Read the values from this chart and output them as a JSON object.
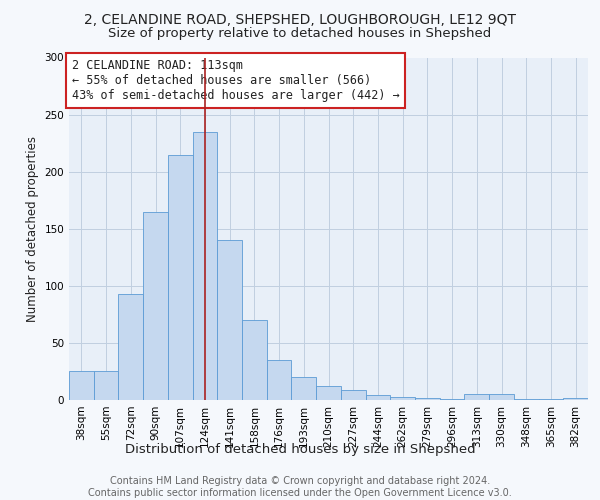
{
  "title_line1": "2, CELANDINE ROAD, SHEPSHED, LOUGHBOROUGH, LE12 9QT",
  "title_line2": "Size of property relative to detached houses in Shepshed",
  "xlabel": "Distribution of detached houses by size in Shepshed",
  "ylabel": "Number of detached properties",
  "footnote": "Contains HM Land Registry data © Crown copyright and database right 2024.\nContains public sector information licensed under the Open Government Licence v3.0.",
  "annotation_line1": "2 CELANDINE ROAD: 113sqm",
  "annotation_line2": "← 55% of detached houses are smaller (566)",
  "annotation_line3": "43% of semi-detached houses are larger (442) →",
  "bar_color": "#c5d8ef",
  "bar_edge_color": "#5b9bd5",
  "vline_color": "#aa2222",
  "annotation_box_color": "#cc2222",
  "categories": [
    "38sqm",
    "55sqm",
    "72sqm",
    "90sqm",
    "107sqm",
    "124sqm",
    "141sqm",
    "158sqm",
    "176sqm",
    "193sqm",
    "210sqm",
    "227sqm",
    "244sqm",
    "262sqm",
    "279sqm",
    "296sqm",
    "313sqm",
    "330sqm",
    "348sqm",
    "365sqm",
    "382sqm"
  ],
  "values": [
    25,
    25,
    93,
    165,
    215,
    235,
    140,
    70,
    35,
    20,
    12,
    9,
    4,
    3,
    2,
    1,
    5,
    5,
    1,
    1,
    2
  ],
  "ylim": [
    0,
    300
  ],
  "yticks": [
    0,
    50,
    100,
    150,
    200,
    250,
    300
  ],
  "vline_position": 5,
  "bg_color": "#e8eff8",
  "title1_fontsize": 10,
  "title2_fontsize": 9.5,
  "xlabel_fontsize": 9.5,
  "ylabel_fontsize": 8.5,
  "tick_fontsize": 7.5,
  "annotation_fontsize": 8.5,
  "footnote_fontsize": 7,
  "grid_color": "#c0cfe0",
  "text_color": "#222222",
  "footnote_color": "#666666"
}
